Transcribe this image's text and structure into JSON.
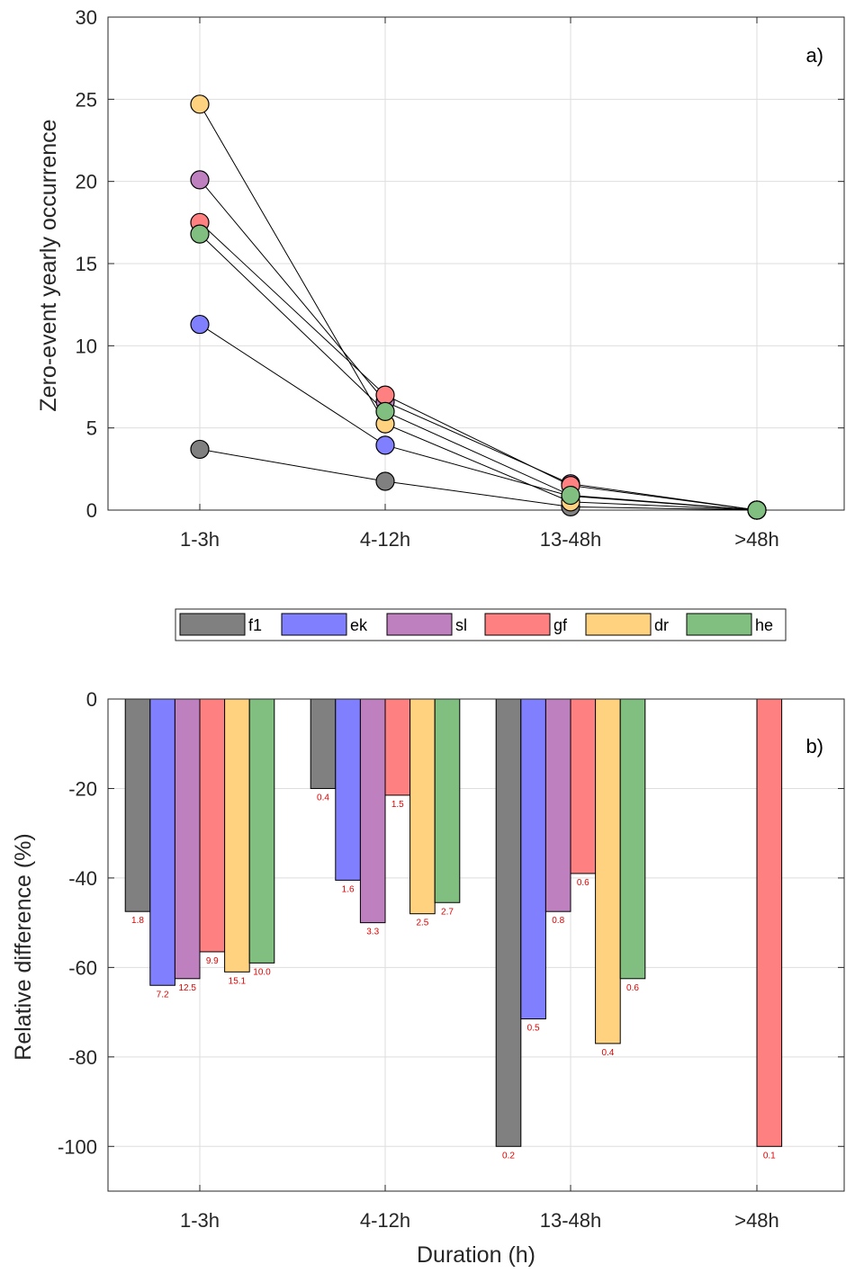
{
  "colors": {
    "f1": "#808080",
    "ek": "#8080ff",
    "sl": "#bf80bf",
    "gf": "#ff8080",
    "dr": "#ffd280",
    "he": "#80bf80"
  },
  "chart_data": [
    {
      "type": "line",
      "panel_label": "a)",
      "categories": [
        "1-3h",
        "4-12h",
        "13-48h",
        ">48h"
      ],
      "xlabel": "",
      "ylabel": "Zero-event yearly occurrence",
      "ylim": [
        0,
        30
      ],
      "yticks": [
        0,
        5,
        10,
        15,
        20,
        25,
        30
      ],
      "grid": true,
      "series": [
        {
          "name": "f1",
          "values": [
            3.7,
            1.75,
            0.2,
            0.0
          ]
        },
        {
          "name": "ek",
          "values": [
            11.3,
            3.95,
            0.85,
            0.0
          ]
        },
        {
          "name": "sl",
          "values": [
            20.1,
            6.6,
            1.6,
            0.0
          ]
        },
        {
          "name": "gf",
          "values": [
            17.5,
            7.0,
            1.5,
            0.0
          ]
        },
        {
          "name": "dr",
          "values": [
            24.7,
            5.25,
            0.5,
            0.0
          ]
        },
        {
          "name": "he",
          "values": [
            16.8,
            6.0,
            0.9,
            0.0
          ]
        }
      ]
    },
    {
      "type": "bar",
      "panel_label": "b)",
      "categories": [
        "1-3h",
        "4-12h",
        "13-48h",
        ">48h"
      ],
      "xlabel": "Duration (h)",
      "ylabel": "Relative difference (%)",
      "ylim": [
        -110,
        0
      ],
      "yticks": [
        0,
        -20,
        -40,
        -60,
        -80,
        -100
      ],
      "grid": true,
      "legend": [
        "f1",
        "ek",
        "sl",
        "gf",
        "dr",
        "he"
      ],
      "legend_position": "top, horizontal, between panels",
      "series": [
        {
          "name": "f1",
          "values": [
            -47.5,
            -20,
            -100,
            null
          ],
          "labels": [
            "1.8",
            "0.4",
            "0.2",
            null
          ]
        },
        {
          "name": "ek",
          "values": [
            -64,
            -40.5,
            -71.5,
            null
          ],
          "labels": [
            "7.2",
            "1.6",
            "0.5",
            null
          ]
        },
        {
          "name": "sl",
          "values": [
            -62.5,
            -50,
            -47.5,
            null
          ],
          "labels": [
            "12.5",
            "3.3",
            "0.8",
            null
          ]
        },
        {
          "name": "gf",
          "values": [
            -56.5,
            -21.5,
            -39,
            -100
          ],
          "labels": [
            "9.9",
            "1.5",
            "0.6",
            "0.1"
          ]
        },
        {
          "name": "dr",
          "values": [
            -61,
            -48,
            -77,
            null
          ],
          "labels": [
            "15.1",
            "2.5",
            "0.4",
            null
          ]
        },
        {
          "name": "he",
          "values": [
            -59,
            -45.5,
            -62.5,
            null
          ],
          "labels": [
            "10.0",
            "2.7",
            "0.6",
            null
          ]
        }
      ]
    }
  ]
}
